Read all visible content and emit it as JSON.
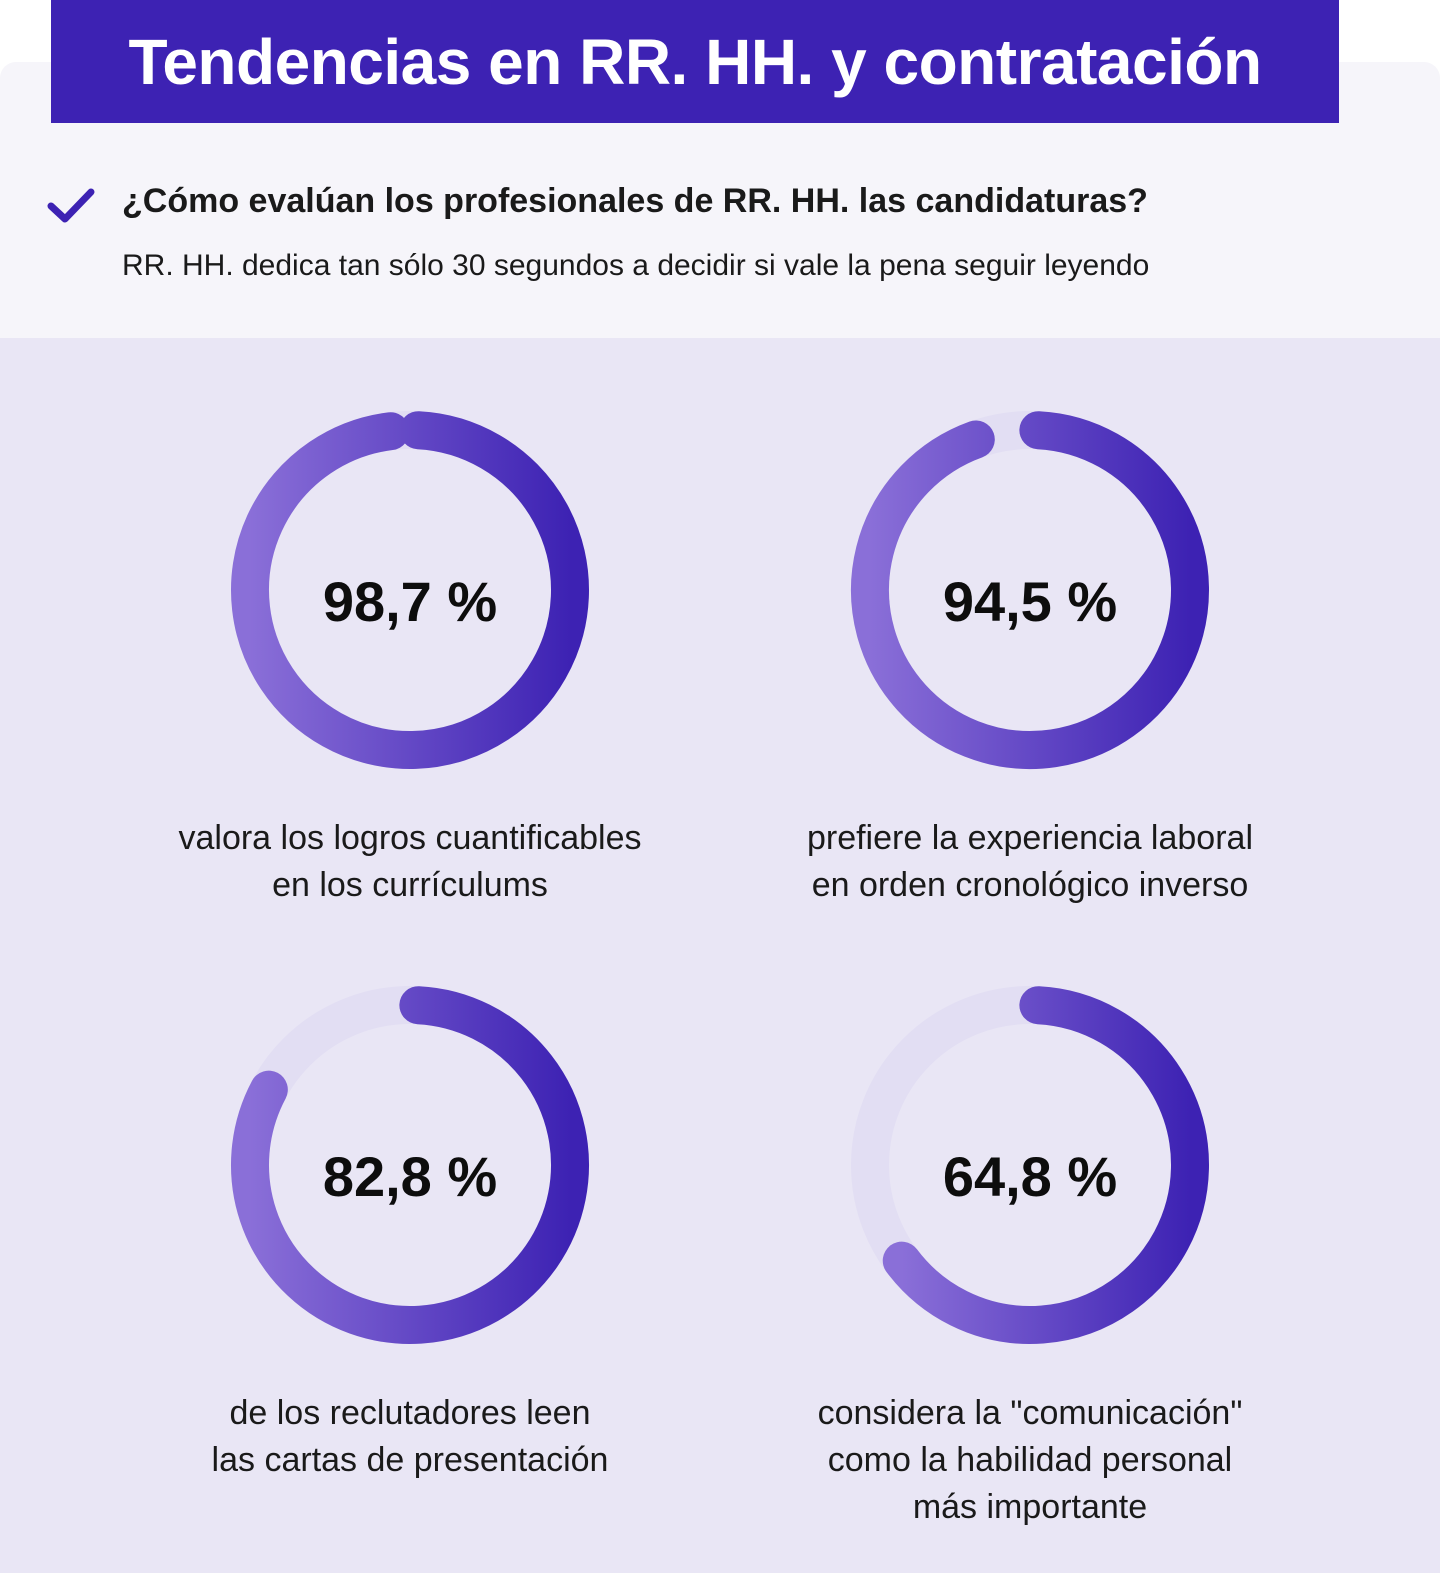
{
  "header": {
    "title": "Tendencias en RR. HH. y contratación"
  },
  "intro": {
    "question": "¿Cómo evalúan los profesionales de RR. HH. las candidaturas?",
    "subtitle": "RR. HH. dedica tan sólo 30 segundos a decidir si vale la pena seguir leyendo",
    "icon": "check-icon"
  },
  "colors": {
    "brand": "#3d22b3",
    "ring_start": "#8a6fd8",
    "ring_end": "#3d22b3",
    "track": "#e2def3",
    "panel": "#e9e6f5"
  },
  "stats": [
    {
      "value_text": "98,7 %",
      "label_line1": "valora los logros cuantificables",
      "label_line2": "en los currículums",
      "label_line3": ""
    },
    {
      "value_text": "94,5 %",
      "label_line1": "prefiere la experiencia laboral",
      "label_line2": "en orden cronológico inverso",
      "label_line3": ""
    },
    {
      "value_text": "82,8 %",
      "label_line1": "de los reclutadores leen",
      "label_line2": "las cartas de presentación",
      "label_line3": ""
    },
    {
      "value_text": "64,8 %",
      "label_line1": "considera la \"comunicación\"",
      "label_line2": "como la habilidad personal",
      "label_line3": "más importante"
    }
  ],
  "chart_data": [
    {
      "type": "pie",
      "values": [
        98.7
      ],
      "unit": "%",
      "label": "valora los logros cuantificables en los currículums"
    },
    {
      "type": "pie",
      "values": [
        94.5
      ],
      "unit": "%",
      "label": "prefiere la experiencia laboral en orden cronológico inverso"
    },
    {
      "type": "pie",
      "values": [
        82.8
      ],
      "unit": "%",
      "label": "de los reclutadores leen las cartas de presentación"
    },
    {
      "type": "pie",
      "values": [
        64.8
      ],
      "unit": "%",
      "label": "considera la \"comunicación\" como la habilidad personal más importante"
    }
  ]
}
